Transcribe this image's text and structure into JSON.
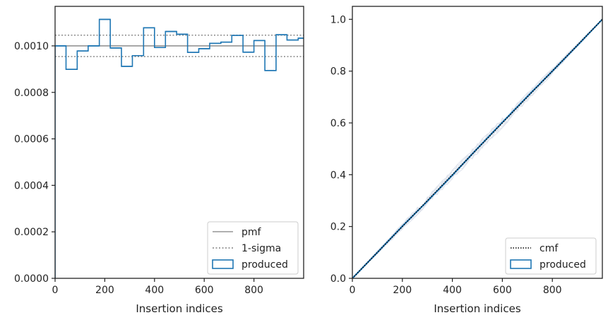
{
  "colors": {
    "produced": "#1f77b4",
    "reference": "#808080",
    "cmf": "#000000",
    "axes": "#222222",
    "background": "#ffffff",
    "legend_border": "#cccccc",
    "bootstrap": "#dfe3ec"
  },
  "chart_data": [
    {
      "type": "step",
      "panel": "left",
      "title": "",
      "xlabel": "Insertion indices",
      "ylabel": "",
      "xlim": [
        0,
        1000
      ],
      "ylim": [
        0,
        0.00117
      ],
      "xticks": [
        0,
        200,
        400,
        600,
        800
      ],
      "xtick_labels": [
        "0",
        "200",
        "400",
        "600",
        "800"
      ],
      "yticks": [
        0,
        0.0002,
        0.0004,
        0.0006,
        0.0008,
        0.001
      ],
      "ytick_labels": [
        "0.0000",
        "0.0002",
        "0.0004",
        "0.0006",
        "0.0008",
        "0.0010"
      ],
      "grid": false,
      "legend_position": "lower-right",
      "legend": [
        "pmf",
        "1-sigma",
        "produced"
      ],
      "pmf": 0.001,
      "sigma_band": [
        0.000954,
        0.001046
      ],
      "bin_edges": [
        0,
        44,
        89,
        133,
        178,
        222,
        267,
        311,
        356,
        400,
        444,
        489,
        533,
        578,
        622,
        667,
        711,
        756,
        800,
        844,
        889,
        933,
        978
      ],
      "values": [
        0.001,
        0.000899,
        0.000978,
        0.001,
        0.001114,
        0.000991,
        0.000912,
        0.000958,
        0.001078,
        0.000993,
        0.001062,
        0.00105,
        0.000972,
        0.000988,
        0.001011,
        0.001016,
        0.001045,
        0.000973,
        0.001023,
        0.000894,
        0.001048,
        0.001025,
        0.001033
      ]
    },
    {
      "type": "line",
      "panel": "right",
      "title": "",
      "xlabel": "Insertion indices",
      "ylabel": "",
      "xlim": [
        0,
        1000
      ],
      "ylim": [
        0,
        1.05
      ],
      "xticks": [
        0,
        200,
        400,
        600,
        800
      ],
      "xtick_labels": [
        "0",
        "200",
        "400",
        "600",
        "800"
      ],
      "yticks": [
        0,
        0.2,
        0.4,
        0.6,
        0.8,
        1.0
      ],
      "ytick_labels": [
        "0.0",
        "0.2",
        "0.4",
        "0.6",
        "0.8",
        "1.0"
      ],
      "grid": false,
      "legend_position": "lower-right",
      "legend": [
        "cmf",
        "produced"
      ],
      "cmf": {
        "x": [
          0,
          1000
        ],
        "y": [
          0,
          1.0
        ]
      },
      "produced": {
        "x": [
          0,
          100,
          200,
          300,
          400,
          500,
          600,
          700,
          800,
          900,
          1000
        ],
        "y": [
          0,
          0.1,
          0.201,
          0.298,
          0.398,
          0.501,
          0.602,
          0.702,
          0.8,
          0.899,
          1.0
        ]
      },
      "bootstrap_deviation": [
        -0.02,
        0.02
      ]
    }
  ]
}
